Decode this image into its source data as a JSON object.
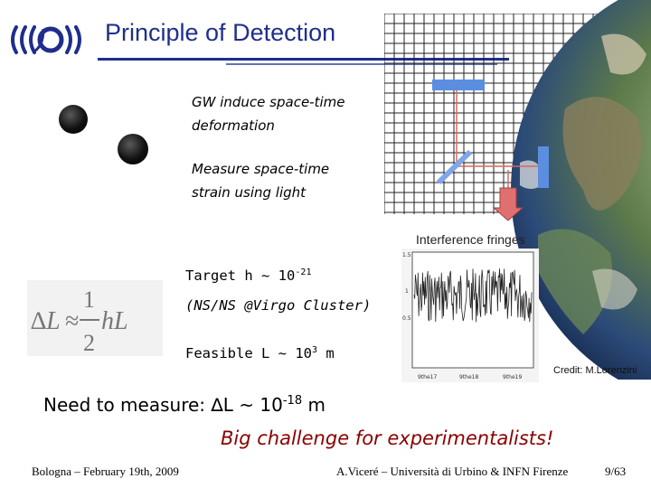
{
  "header": {
    "title": "Principle of Detection"
  },
  "text": {
    "gw_line1": "GW induce space-time",
    "gw_line2": "deformation",
    "measure_line1": "Measure space-time",
    "measure_line2": "strain using light",
    "fringes": "Interference fringes",
    "credit": "Credit: M.Lorenzini"
  },
  "target": {
    "prefix": "Target h ~ 10",
    "exp": "-21",
    "note": "(NS/NS @Virgo Cluster)"
  },
  "feasible": {
    "prefix": "Feasible L ~ 10",
    "exp": "3",
    "suffix": " m"
  },
  "need": {
    "prefix": "Need to measure: ",
    "delta": "∆",
    "mid": "L ~ 10",
    "exp": "-18",
    "suffix": " m"
  },
  "challenge": "Big challenge for experimentalists!",
  "formula": {
    "lhs": "∆L",
    "approx": "≈",
    "num": "1",
    "den": "2",
    "rhs": "hL"
  },
  "plot": {
    "y_ticks": [
      "1.5",
      "1",
      "0.5"
    ],
    "x_ticks": [
      "9the17",
      "9the18",
      "9the19"
    ]
  },
  "footer": {
    "left": "Bologna – February 19th, 2009",
    "middle": "A.Viceré – Università di Urbino & INFN Firenze",
    "right": "9/63"
  },
  "colors": {
    "title": "#1f2e8c",
    "challenge": "#8b0000",
    "mirror": "#5b8ee0",
    "arrow": "#e07070"
  }
}
